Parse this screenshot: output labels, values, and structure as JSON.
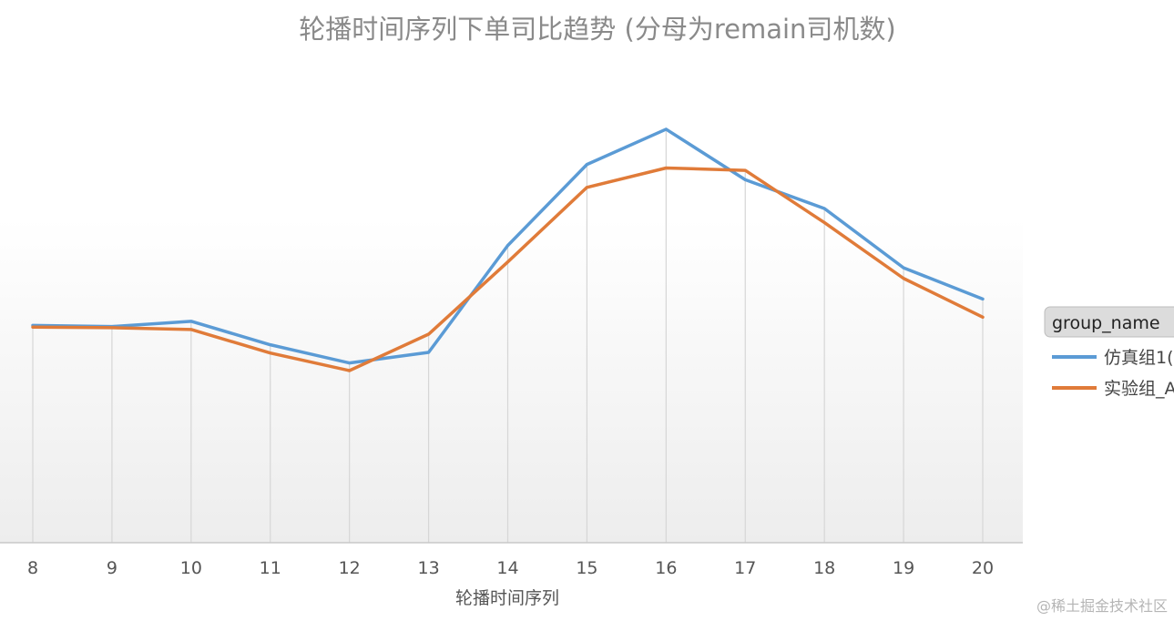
{
  "chart_data": {
    "type": "line",
    "title": "轮播时间序列下单司比趋势 (分母为remain司机数)",
    "xlabel": "轮播时间序列",
    "ylabel": "",
    "x": [
      8,
      9,
      10,
      11,
      12,
      13,
      14,
      15,
      16,
      17,
      18,
      19,
      20
    ],
    "series": [
      {
        "name": "仿真组1(",
        "color": "#5b9bd5",
        "values": [
          0.37,
          0.368,
          0.377,
          0.337,
          0.306,
          0.324,
          0.506,
          0.644,
          0.704,
          0.618,
          0.569,
          0.468,
          0.415
        ]
      },
      {
        "name": "实验组_A",
        "color": "#e07b39",
        "values": [
          0.367,
          0.366,
          0.363,
          0.323,
          0.293,
          0.355,
          0.478,
          0.605,
          0.638,
          0.634,
          0.545,
          0.45,
          0.384
        ]
      }
    ],
    "ylim": [
      0.0,
      0.8
    ],
    "grid": "vertical",
    "legend_title": "group_name",
    "legend_position": "right"
  },
  "watermark": "@稀土掘金技术社区"
}
